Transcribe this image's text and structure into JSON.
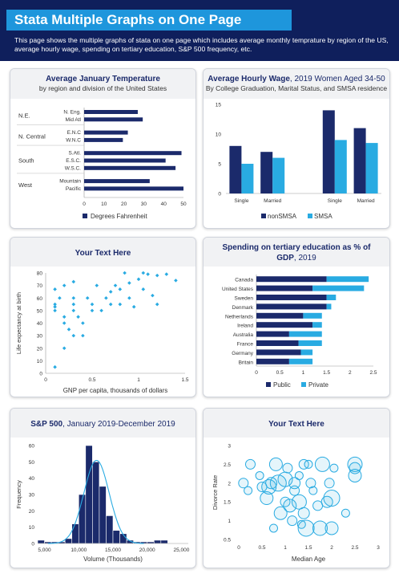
{
  "header": {
    "title": "Stata Multiple Graphs on One Page",
    "description": "This page shows the multiple graphs of stata on one page which includes average monthly temprature by region of the US, average hourly wage, spending on tertiary education, S&P 500 frequency, etc."
  },
  "colors": {
    "navy": "#1b2a6b",
    "blue": "#1e96dc",
    "light_blue": "#29abe2",
    "header_bg": "#0f1f5c"
  },
  "chart_data": [
    {
      "type": "bar",
      "orientation": "horizontal",
      "title": "Average January Temperature",
      "subtitle": "by region and division of the United States",
      "groups": [
        {
          "label": "N.E.",
          "categories": [
            "N. Eng.",
            "Mid Atl"
          ]
        },
        {
          "label": "N. Central",
          "categories": [
            "E.N.C",
            "W.N.C"
          ]
        },
        {
          "label": "South",
          "categories": [
            "S.Atl.",
            "E.S.C.",
            "W.S.C."
          ]
        },
        {
          "label": "West",
          "categories": [
            "Mountain",
            "Pacific"
          ]
        }
      ],
      "categories": [
        "N. Eng.",
        "Mid Atl",
        "E.N.C",
        "W.N.C",
        "S.Atl.",
        "E.S.C.",
        "W.S.C.",
        "Mountain",
        "Pacific"
      ],
      "values": [
        27,
        29.5,
        22,
        19.5,
        49,
        41,
        46,
        33,
        50
      ],
      "xlim": [
        0,
        50
      ],
      "xticks": [
        0,
        10,
        20,
        30,
        40,
        50
      ],
      "legend": [
        "Degrees Fahrenheit"
      ],
      "legend_position": "bottom"
    },
    {
      "type": "bar",
      "title": "Average Hourly Wage",
      "title_rest": ", 2019 Women Aged 34-50",
      "subtitle": "By College Graduation, Marital Status, and SMSA residence",
      "categories": [
        "Single",
        "Married",
        "",
        "Single",
        "Married"
      ],
      "series": [
        {
          "name": "nonSMSA",
          "values": [
            8,
            7,
            null,
            14,
            11
          ]
        },
        {
          "name": "SMSA",
          "values": [
            5,
            6,
            null,
            9,
            8.5
          ]
        }
      ],
      "ylim": [
        0,
        15
      ],
      "yticks": [
        0,
        5,
        10,
        15
      ],
      "legend_position": "bottom"
    },
    {
      "type": "scatter",
      "title": "Your Text Here",
      "xlabel": "GNP per capita, thousands of dollars",
      "ylabel": "Life expectancy at birth",
      "xlim": [
        0,
        1.5
      ],
      "ylim": [
        0,
        80
      ],
      "xticks": [
        "0",
        "0.5",
        "1",
        "1.5"
      ],
      "yticks": [
        0,
        10,
        20,
        30,
        40,
        50,
        60,
        70,
        80
      ],
      "points": [
        [
          0.1,
          5
        ],
        [
          0.1,
          53
        ],
        [
          0.1,
          55
        ],
        [
          0.1,
          67
        ],
        [
          0.1,
          50
        ],
        [
          0.15,
          60
        ],
        [
          0.2,
          45
        ],
        [
          0.2,
          20
        ],
        [
          0.2,
          40
        ],
        [
          0.2,
          70
        ],
        [
          0.25,
          35
        ],
        [
          0.3,
          30
        ],
        [
          0.3,
          55
        ],
        [
          0.3,
          60
        ],
        [
          0.3,
          50
        ],
        [
          0.3,
          73
        ],
        [
          0.35,
          45
        ],
        [
          0.4,
          30
        ],
        [
          0.4,
          40
        ],
        [
          0.45,
          60
        ],
        [
          0.5,
          50
        ],
        [
          0.5,
          55
        ],
        [
          0.55,
          70
        ],
        [
          0.6,
          50
        ],
        [
          0.65,
          60
        ],
        [
          0.7,
          55
        ],
        [
          0.7,
          65
        ],
        [
          0.75,
          70
        ],
        [
          0.8,
          55
        ],
        [
          0.8,
          67
        ],
        [
          0.85,
          80
        ],
        [
          0.9,
          60
        ],
        [
          0.9,
          72
        ],
        [
          0.95,
          53
        ],
        [
          1.0,
          75
        ],
        [
          1.05,
          67
        ],
        [
          1.05,
          80
        ],
        [
          1.1,
          79
        ],
        [
          1.15,
          62
        ],
        [
          1.2,
          78
        ],
        [
          1.2,
          55
        ],
        [
          1.3,
          79
        ],
        [
          1.4,
          74
        ]
      ]
    },
    {
      "type": "bar",
      "orientation": "horizontal",
      "stacked": true,
      "title": "Spending on tertiary education as % of GDP",
      "title_rest": ", 2019",
      "categories": [
        "Canada",
        "United States",
        "Sweden",
        "Denmark",
        "Netherlands",
        "Ireland",
        "Australia",
        "France",
        "Germany",
        "Britain"
      ],
      "series": [
        {
          "name": "Public",
          "values": [
            1.5,
            1.2,
            1.5,
            1.5,
            1.0,
            1.2,
            0.7,
            0.9,
            0.95,
            0.7
          ]
        },
        {
          "name": "Private",
          "values": [
            0.9,
            1.1,
            0.2,
            0.1,
            0.4,
            0.2,
            0.7,
            0.5,
            0.25,
            0.5
          ]
        }
      ],
      "xlim": [
        0,
        2.5
      ],
      "xticks": [
        "0",
        "0.5",
        "1",
        "1.5",
        "2",
        "2.5"
      ],
      "legend_position": "bottom"
    },
    {
      "type": "bar",
      "subtype": "histogram",
      "title": "S&P 500",
      "title_rest": ", January 2019-December 2019",
      "xlabel": "Volume (Thousands)",
      "ylabel": "Frequency",
      "xlim": [
        4000,
        26000
      ],
      "ylim": [
        0,
        60
      ],
      "xticks": [
        "5,000",
        "10,000",
        "15,000",
        "20,000",
        "25,000"
      ],
      "yticks": [
        0,
        10,
        20,
        30,
        40,
        50,
        60
      ],
      "bins": [
        [
          4000,
          5000,
          2
        ],
        [
          5000,
          6000,
          1
        ],
        [
          6000,
          7000,
          1
        ],
        [
          7000,
          8000,
          1
        ],
        [
          8000,
          9000,
          3
        ],
        [
          9000,
          10000,
          12
        ],
        [
          10000,
          11000,
          30
        ],
        [
          11000,
          12000,
          60
        ],
        [
          12000,
          13000,
          50
        ],
        [
          13000,
          14000,
          35
        ],
        [
          14000,
          15000,
          17
        ],
        [
          15000,
          16000,
          8
        ],
        [
          16000,
          17000,
          6
        ],
        [
          17000,
          18000,
          2
        ],
        [
          18000,
          19000,
          1
        ],
        [
          19000,
          20000,
          1
        ],
        [
          20000,
          21000,
          1
        ],
        [
          21000,
          22000,
          2
        ],
        [
          22000,
          23000,
          2
        ]
      ],
      "density_curve": {
        "mean": 12600,
        "sd": 1850,
        "peak": 51
      }
    },
    {
      "type": "scatter",
      "subtype": "bubble",
      "title": "Your Text Here",
      "xlabel": "Median Age",
      "ylabel": "Divorce Rate",
      "xlim": [
        0,
        3
      ],
      "ylim": [
        0.5,
        3
      ],
      "xticks": [
        0,
        0.5,
        1,
        1.5,
        2,
        2.5,
        3
      ],
      "yticks": [
        "0.5",
        "1",
        "1.5",
        "2",
        "2.5",
        "3"
      ],
      "points": [
        [
          0.1,
          2.0,
          6
        ],
        [
          0.2,
          1.8,
          5
        ],
        [
          0.25,
          2.5,
          6
        ],
        [
          0.45,
          2.2,
          5
        ],
        [
          0.5,
          1.9,
          6
        ],
        [
          0.6,
          1.6,
          8
        ],
        [
          0.65,
          1.9,
          9
        ],
        [
          0.7,
          2.0,
          7
        ],
        [
          0.75,
          0.8,
          5
        ],
        [
          0.8,
          2.5,
          8
        ],
        [
          0.85,
          2.0,
          10
        ],
        [
          0.9,
          1.2,
          8
        ],
        [
          1.0,
          2.1,
          9
        ],
        [
          1.0,
          1.5,
          6
        ],
        [
          1.05,
          2.4,
          6
        ],
        [
          1.1,
          1.4,
          8
        ],
        [
          1.15,
          1.0,
          6
        ],
        [
          1.2,
          2.0,
          7
        ],
        [
          1.2,
          1.8,
          6
        ],
        [
          1.3,
          1.5,
          9
        ],
        [
          1.3,
          2.2,
          5
        ],
        [
          1.35,
          0.9,
          5
        ],
        [
          1.4,
          1.2,
          7
        ],
        [
          1.4,
          2.5,
          6
        ],
        [
          1.45,
          0.8,
          10
        ],
        [
          1.5,
          2.5,
          5
        ],
        [
          1.55,
          2.0,
          6
        ],
        [
          1.6,
          1.8,
          5
        ],
        [
          1.7,
          1.4,
          6
        ],
        [
          1.75,
          0.8,
          9
        ],
        [
          1.8,
          2.5,
          9
        ],
        [
          1.9,
          1.5,
          7
        ],
        [
          1.95,
          2.0,
          6
        ],
        [
          2.0,
          1.6,
          10
        ],
        [
          2.0,
          0.8,
          8
        ],
        [
          2.05,
          2.4,
          5
        ],
        [
          2.3,
          1.2,
          5
        ],
        [
          2.5,
          2.5,
          9
        ],
        [
          2.5,
          2.4,
          7
        ],
        [
          2.5,
          2.2,
          8
        ]
      ]
    }
  ]
}
